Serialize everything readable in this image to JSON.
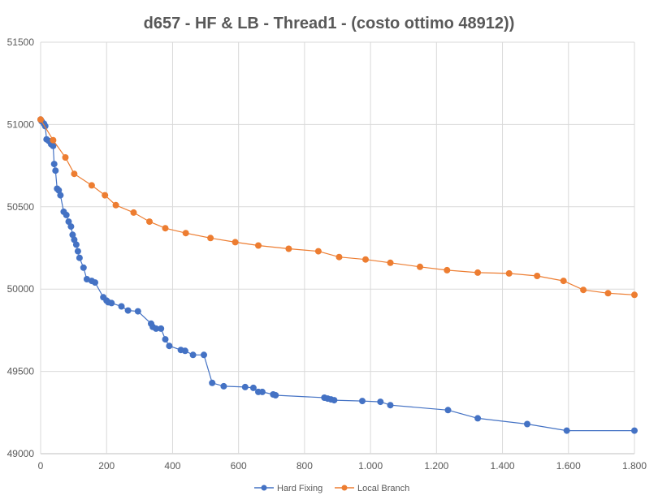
{
  "chart_data": {
    "type": "line",
    "title": "d657 - HF & LB - Thread1  - (costo ottimo  48912))",
    "xlabel": "",
    "ylabel": "",
    "xlim": [
      0,
      1800
    ],
    "ylim": [
      49000,
      51500
    ],
    "x_ticks": [
      0,
      200,
      400,
      600,
      800,
      1000,
      1200,
      1400,
      1600,
      1800
    ],
    "x_tick_labels": [
      "0",
      "200",
      "400",
      "600",
      "800",
      "1.000",
      "1.200",
      "1.400",
      "1.600",
      "1.800"
    ],
    "y_ticks": [
      49000,
      49500,
      50000,
      50500,
      51000,
      51500
    ],
    "y_tick_labels": [
      "49000",
      "49500",
      "50000",
      "50500",
      "51000",
      "51500"
    ],
    "grid": true,
    "legend_position": "bottom",
    "series": [
      {
        "name": "Hard Fixing",
        "color": "#4472C4",
        "points": [
          [
            0,
            51030
          ],
          [
            3,
            51020
          ],
          [
            10,
            51005
          ],
          [
            14,
            50990
          ],
          [
            18,
            50910
          ],
          [
            25,
            50900
          ],
          [
            32,
            50880
          ],
          [
            38,
            50870
          ],
          [
            41,
            50760
          ],
          [
            45,
            50720
          ],
          [
            50,
            50610
          ],
          [
            55,
            50600
          ],
          [
            60,
            50570
          ],
          [
            70,
            50470
          ],
          [
            78,
            50450
          ],
          [
            85,
            50410
          ],
          [
            92,
            50380
          ],
          [
            97,
            50330
          ],
          [
            102,
            50300
          ],
          [
            108,
            50270
          ],
          [
            113,
            50230
          ],
          [
            118,
            50190
          ],
          [
            130,
            50130
          ],
          [
            140,
            50060
          ],
          [
            155,
            50050
          ],
          [
            165,
            50040
          ],
          [
            190,
            49950
          ],
          [
            200,
            49930
          ],
          [
            205,
            49920
          ],
          [
            215,
            49915
          ],
          [
            245,
            49895
          ],
          [
            265,
            49870
          ],
          [
            295,
            49865
          ],
          [
            335,
            49790
          ],
          [
            340,
            49770
          ],
          [
            350,
            49760
          ],
          [
            365,
            49760
          ],
          [
            378,
            49695
          ],
          [
            390,
            49655
          ],
          [
            425,
            49630
          ],
          [
            438,
            49625
          ],
          [
            462,
            49600
          ],
          [
            495,
            49600
          ],
          [
            520,
            49430
          ],
          [
            555,
            49410
          ],
          [
            620,
            49405
          ],
          [
            645,
            49400
          ],
          [
            660,
            49375
          ],
          [
            672,
            49375
          ],
          [
            705,
            49360
          ],
          [
            712,
            49355
          ],
          [
            860,
            49340
          ],
          [
            870,
            49335
          ],
          [
            880,
            49330
          ],
          [
            890,
            49325
          ],
          [
            975,
            49320
          ],
          [
            1030,
            49315
          ],
          [
            1060,
            49295
          ],
          [
            1235,
            49265
          ],
          [
            1325,
            49215
          ],
          [
            1475,
            49180
          ],
          [
            1595,
            49140
          ],
          [
            1800,
            49140
          ]
        ]
      },
      {
        "name": "Local Branch",
        "color": "#ED7D31",
        "points": [
          [
            0,
            51030
          ],
          [
            38,
            50905
          ],
          [
            75,
            50800
          ],
          [
            102,
            50700
          ],
          [
            155,
            50630
          ],
          [
            195,
            50570
          ],
          [
            228,
            50510
          ],
          [
            282,
            50465
          ],
          [
            330,
            50410
          ],
          [
            378,
            50370
          ],
          [
            440,
            50340
          ],
          [
            515,
            50310
          ],
          [
            590,
            50285
          ],
          [
            660,
            50265
          ],
          [
            752,
            50245
          ],
          [
            842,
            50230
          ],
          [
            905,
            50195
          ],
          [
            985,
            50180
          ],
          [
            1060,
            50160
          ],
          [
            1150,
            50135
          ],
          [
            1232,
            50115
          ],
          [
            1325,
            50100
          ],
          [
            1420,
            50095
          ],
          [
            1505,
            50080
          ],
          [
            1585,
            50050
          ],
          [
            1645,
            49995
          ],
          [
            1720,
            49975
          ],
          [
            1800,
            49965
          ]
        ]
      }
    ]
  }
}
